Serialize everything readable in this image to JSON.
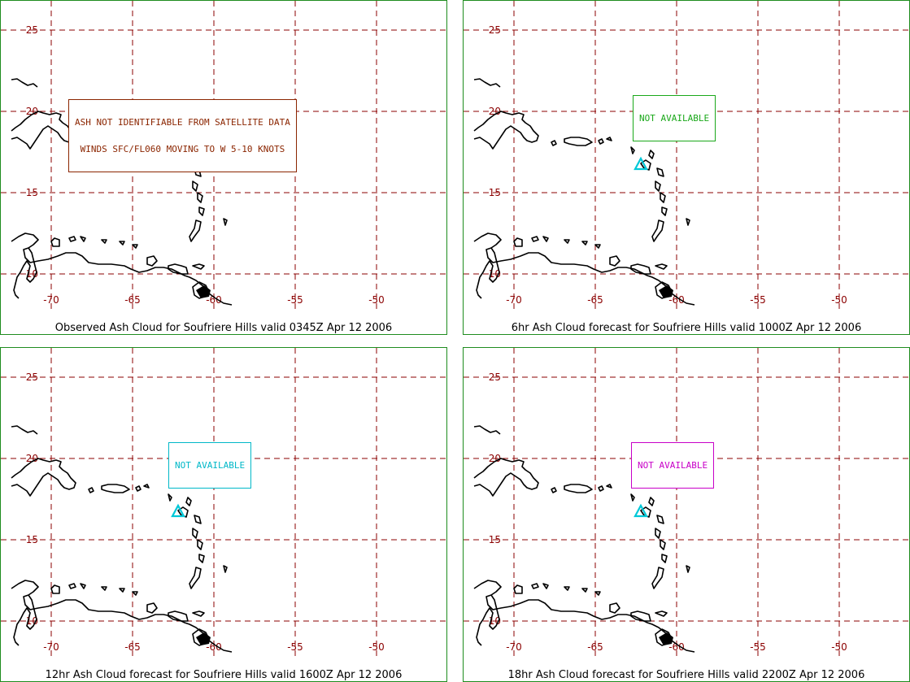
{
  "colors": {
    "frame": "#1e8c1e",
    "grid": "#8b0000",
    "coast": "#000000",
    "volcano": "#00c8d8"
  },
  "map": {
    "lon_ticks": [
      -70,
      -65,
      -60,
      -55,
      -50
    ],
    "lat_ticks": [
      25,
      20,
      15,
      10
    ],
    "volcano_marker": {
      "lon": -62.2,
      "lat": 16.7,
      "icon": "triangle-icon"
    }
  },
  "panels": [
    {
      "caption": "Observed Ash Cloud for Soufriere  Hills valid 0345Z Apr 12 2006",
      "notice_lines": [
        "ASH NOT IDENTIFIABLE FROM SATELLITE DATA",
        "WINDS SFC/FL060 MOVING TO W 5-10 KNOTS"
      ],
      "notice_color": "#8b2500"
    },
    {
      "caption": "6hr Ash Cloud forecast for Soufriere  Hills valid 1000Z Apr 12 2006",
      "notice_lines": [
        "NOT AVAILABLE"
      ],
      "notice_color": "#1aa81a"
    },
    {
      "caption": "12hr Ash Cloud forecast for Soufriere  Hills valid 1600Z Apr 12 2006",
      "notice_lines": [
        "NOT AVAILABLE"
      ],
      "notice_color": "#00b8c8"
    },
    {
      "caption": "18hr Ash Cloud forecast for Soufriere  Hills valid 2200Z Apr 12 2006",
      "notice_lines": [
        "NOT AVAILABLE"
      ],
      "notice_color": "#c800c8"
    }
  ]
}
